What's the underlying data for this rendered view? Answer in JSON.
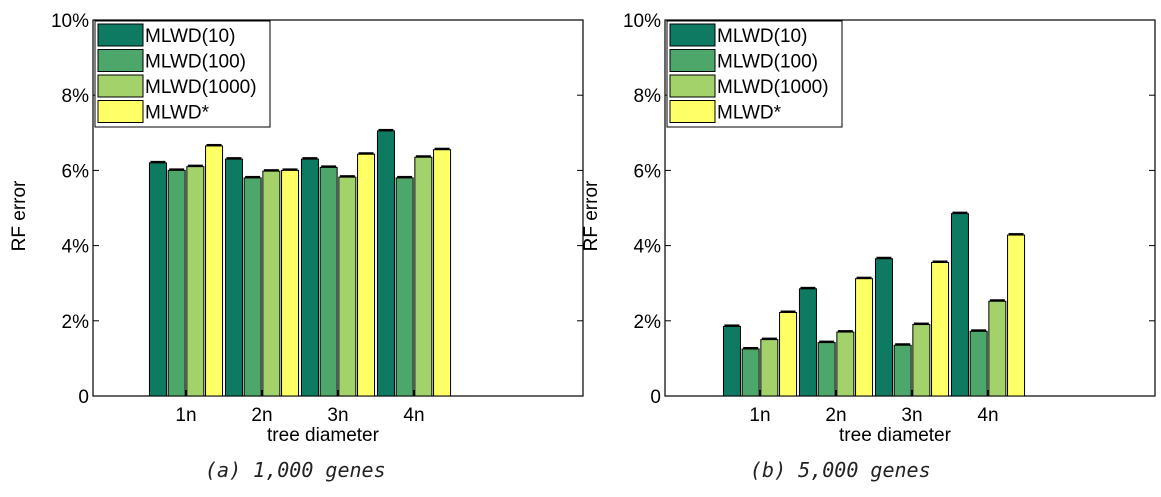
{
  "series_colors": [
    "#0f7a62",
    "#4ea76a",
    "#a3d16a",
    "#ffff66"
  ],
  "chart_data": [
    {
      "type": "bar",
      "caption": "(a) 1,000 genes",
      "xlabel": "tree diameter",
      "ylabel": "RF error",
      "ylim": [
        0,
        10
      ],
      "yticks": [
        0,
        2,
        4,
        6,
        8,
        10
      ],
      "yticklabels": [
        "0",
        "2%",
        "4%",
        "6%",
        "8%",
        "10%"
      ],
      "categories": [
        "1n",
        "2n",
        "3n",
        "4n"
      ],
      "legend_position": "top-left",
      "series": [
        {
          "name": "MLWD(10)",
          "values": [
            6.2,
            6.3,
            6.3,
            7.05
          ]
        },
        {
          "name": "MLWD(100)",
          "values": [
            6.0,
            5.8,
            6.08,
            5.8
          ]
        },
        {
          "name": "MLWD(1000)",
          "values": [
            6.1,
            5.98,
            5.82,
            6.35
          ]
        },
        {
          "name": "MLWD*",
          "values": [
            6.65,
            6.0,
            6.43,
            6.55
          ]
        }
      ]
    },
    {
      "type": "bar",
      "caption": "(b) 5,000 genes",
      "xlabel": "tree diameter",
      "ylabel": "RF error",
      "ylim": [
        0,
        10
      ],
      "yticks": [
        0,
        2,
        4,
        6,
        8,
        10
      ],
      "yticklabels": [
        "0",
        "2%",
        "4%",
        "6%",
        "8%",
        "10%"
      ],
      "categories": [
        "1n",
        "2n",
        "3n",
        "4n"
      ],
      "legend_position": "top-left",
      "series": [
        {
          "name": "MLWD(10)",
          "values": [
            1.85,
            2.85,
            3.65,
            4.85
          ]
        },
        {
          "name": "MLWD(100)",
          "values": [
            1.25,
            1.42,
            1.35,
            1.72
          ]
        },
        {
          "name": "MLWD(1000)",
          "values": [
            1.5,
            1.7,
            1.9,
            2.52
          ]
        },
        {
          "name": "MLWD*",
          "values": [
            2.22,
            3.12,
            3.55,
            4.28
          ]
        }
      ]
    }
  ]
}
